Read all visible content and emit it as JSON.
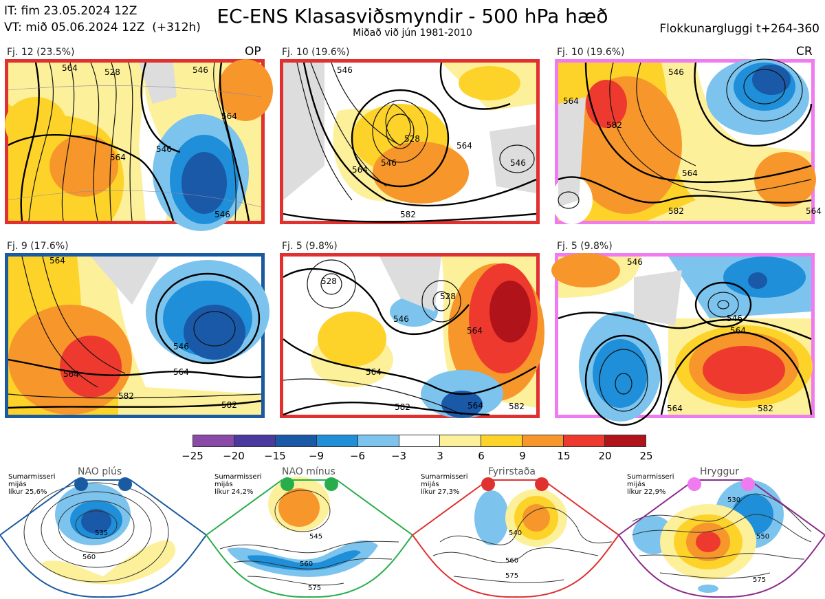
{
  "header": {
    "it": "IT: fim 23.05.2024 12Z",
    "vt": "VT: mið 05.06.2024 12Z  (+312h)",
    "title": "EC-ENS Klasasviðsmyndir - 500 hPa hæð",
    "subtitle": "Miðað við jún 1981-2010",
    "window": "Flokkunargluggi t+264-360"
  },
  "panels": [
    {
      "label": "Fj. 12 (23.5%)",
      "tag": "OP",
      "regime": "Fyrirstaða",
      "border_color": "#e03030",
      "contour_labels": [
        "564",
        "528",
        "546",
        "564",
        "546",
        "564",
        "546"
      ]
    },
    {
      "label": "Fj. 10 (19.6%)",
      "tag": "",
      "regime": "Fyrirstaða",
      "border_color": "#e03030",
      "contour_labels": [
        "546",
        "528",
        "546",
        "564",
        "564",
        "582",
        "546"
      ]
    },
    {
      "label": "Fj. 10 (19.6%)",
      "tag": "CR",
      "regime": "Hryggur",
      "border_color": "#f07af0",
      "contour_labels": [
        "564",
        "546",
        "564",
        "582",
        "582",
        "564"
      ]
    },
    {
      "label": "Fj. 9 (17.6%)",
      "tag": "",
      "regime": "NAO plús",
      "border_color": "#1a5aa0",
      "contour_labels": [
        "564",
        "546",
        "564",
        "564",
        "582",
        "582"
      ]
    },
    {
      "label": "Fj. 5 (9.8%)",
      "tag": "",
      "regime": "Fyrirstaða",
      "border_color": "#e03030",
      "contour_labels": [
        "528",
        "546",
        "528",
        "564",
        "564",
        "582",
        "564",
        "582"
      ]
    },
    {
      "label": "Fj. 5 (9.8%)",
      "tag": "",
      "regime": "Hryggur",
      "border_color": "#f07af0",
      "contour_labels": [
        "546",
        "546",
        "564",
        "564",
        "582"
      ]
    }
  ],
  "colorbar": {
    "colors": [
      "#8a4aa8",
      "#4a3aa0",
      "#1a58a8",
      "#1e8fd8",
      "#7cc4ee",
      "#ffffff",
      "#fdf09a",
      "#fdd32a",
      "#f7962a",
      "#ee3a2e",
      "#b0141a"
    ],
    "ticks": [
      "−25",
      "−20",
      "−15",
      "−9",
      "−6",
      "−3",
      "3",
      "6",
      "9",
      "15",
      "20",
      "25"
    ]
  },
  "regimes": [
    {
      "name": "NAO plús",
      "note": "Sumarmisseri\nmijás\nlíkur 25,6%",
      "color": "#1a5aa0",
      "labels": [
        "535",
        "560"
      ]
    },
    {
      "name": "NAO mínus",
      "note": "Sumarmisseri\nmijás\nlíkur 24,2%",
      "color": "#27ae4a",
      "labels": [
        "545",
        "560",
        "575"
      ]
    },
    {
      "name": "Fyrirstaða",
      "note": "Sumarmisseri\nmijás\nlíkur 27,3%",
      "color": "#e03030",
      "labels": [
        "540",
        "560",
        "575"
      ]
    },
    {
      "name": "Hryggur",
      "note": "Sumarmisseri\nmijás\nlíkur 22,9%",
      "color": "#f07af0",
      "labels": [
        "530",
        "550",
        "575"
      ]
    }
  ]
}
